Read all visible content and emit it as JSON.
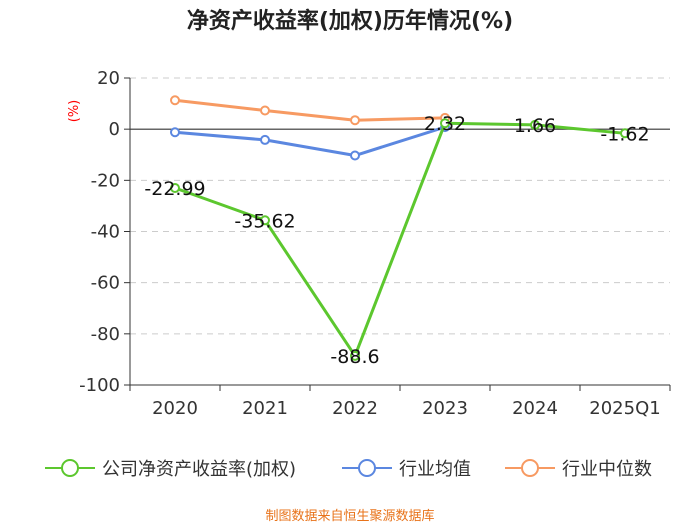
{
  "chart_data": {
    "type": "line",
    "title": "净资产收益率(加权)历年情况(%)",
    "ylabel": "(%)",
    "xlabel": "",
    "categories": [
      "2020",
      "2021",
      "2022",
      "2023",
      "2024",
      "2025Q1"
    ],
    "ylim": [
      -100,
      20
    ],
    "yticks": [
      20,
      0,
      -20,
      -40,
      -60,
      -80,
      -100
    ],
    "grid": true,
    "legend_position": "bottom",
    "series": [
      {
        "name": "公司净资产收益率(加权)",
        "color": "#5cc72e",
        "values": [
          -22.99,
          -35.62,
          -88.6,
          2.32,
          1.66,
          -1.62
        ],
        "labels": [
          "-22.99",
          "-35.62",
          "-88.6",
          "2.32",
          "1.66",
          "-1.62"
        ]
      },
      {
        "name": "行业均值",
        "color": "#5b87e0",
        "values": [
          -1.2,
          -4.2,
          -10.3,
          0.8,
          null,
          null
        ]
      },
      {
        "name": "行业中位数",
        "color": "#f79a62",
        "values": [
          11.3,
          7.3,
          3.5,
          4.4,
          null,
          null
        ]
      }
    ],
    "source": "制图数据来自恒生聚源数据库"
  }
}
